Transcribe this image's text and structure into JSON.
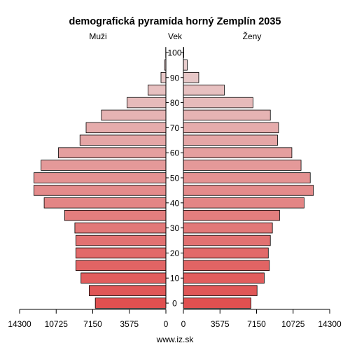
{
  "chart_data": {
    "type": "bar",
    "title": "demografická pyramída horný Zemplín 2035",
    "left_label": "Muži",
    "center_label": "Vek",
    "right_label": "Ženy",
    "source": "www.iz.sk",
    "xlim": [
      0,
      14300
    ],
    "x_ticks": [
      "14300",
      "10725",
      "7150",
      "3575",
      "0"
    ],
    "x_ticks_right": [
      "0",
      "3575",
      "7150",
      "10725",
      "14300"
    ],
    "age_ticks": [
      "0",
      "10",
      "20",
      "30",
      "40",
      "50",
      "60",
      "70",
      "80",
      "90",
      "100"
    ],
    "categories": [
      "0-4",
      "5-9",
      "10-14",
      "15-19",
      "20-24",
      "25-29",
      "30-34",
      "35-39",
      "40-44",
      "45-49",
      "50-54",
      "55-59",
      "60-64",
      "65-69",
      "70-74",
      "75-79",
      "80-84",
      "85-89",
      "90-94",
      "95-99",
      "100+"
    ],
    "series": [
      {
        "name": "Muži",
        "values": [
          6900,
          7500,
          8300,
          8800,
          8800,
          8800,
          8900,
          9900,
          11900,
          12900,
          12900,
          12200,
          10500,
          8400,
          7800,
          6300,
          3800,
          1750,
          480,
          130,
          20
        ]
      },
      {
        "name": "Ženy",
        "values": [
          6600,
          7200,
          7900,
          8400,
          8300,
          8500,
          8700,
          9400,
          11800,
          12700,
          12400,
          11500,
          10600,
          9200,
          9300,
          8500,
          6800,
          4000,
          1500,
          380,
          40
        ]
      }
    ],
    "colors": {
      "bottom": "#e05050",
      "top": "#e8d4d4",
      "stroke": "#000000"
    }
  }
}
